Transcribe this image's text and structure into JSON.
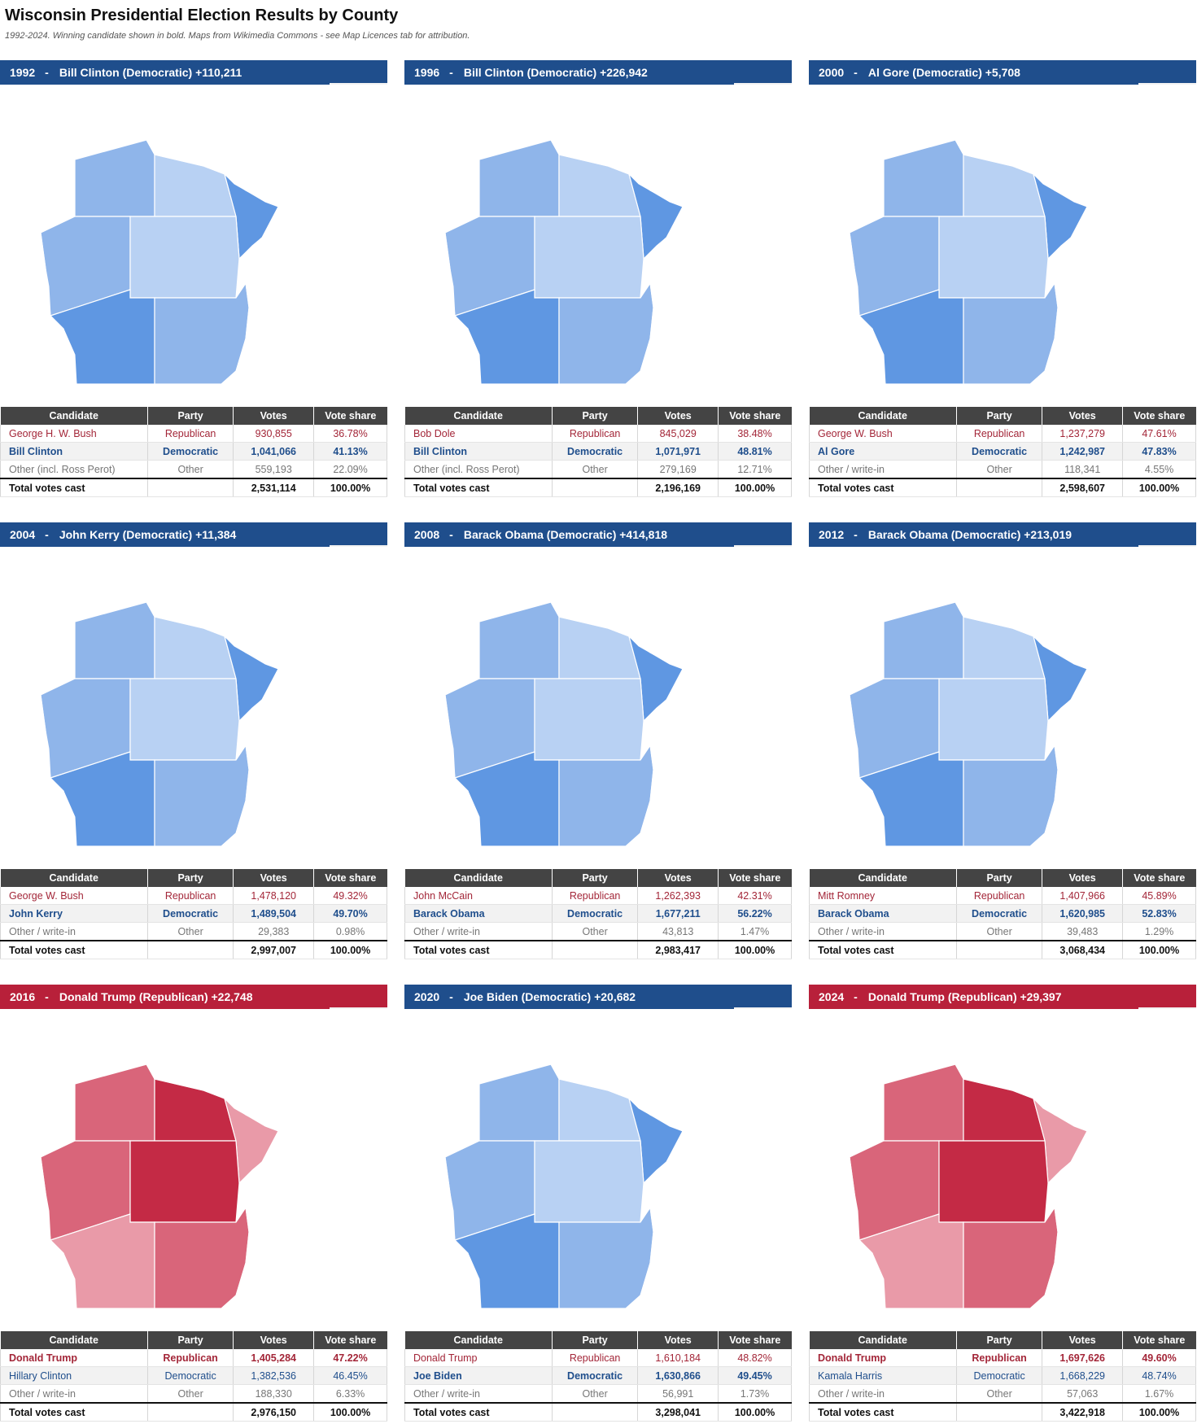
{
  "title": "Wisconsin Presidential Election Results by County",
  "subtitle": "1992-2024. Winning candidate shown in bold. Maps from Wikimedia Commons - see Map Licences tab for attribution.",
  "colors": {
    "dem_header": "#1f4e8c",
    "rep_header": "#b8203a",
    "table_header": "#444444"
  },
  "table_headers": {
    "candidate": "Candidate",
    "party": "Party",
    "votes": "Votes",
    "share": "Vote share"
  },
  "panels": [
    {
      "year": "1992",
      "headline": "Bill Clinton (Democratic) +110,211",
      "winner_party": "dem",
      "rows": [
        {
          "candidate": "George H. W. Bush",
          "party": "Republican",
          "votes": "930,855",
          "share": "36.78%"
        },
        {
          "candidate": "Bill Clinton",
          "party": "Democratic",
          "votes": "1,041,066",
          "share": "41.13%"
        },
        {
          "candidate": "Other (incl. Ross Perot)",
          "party": "Other",
          "votes": "559,193",
          "share": "22.09%"
        },
        {
          "candidate": "Total votes cast",
          "party": "",
          "votes": "2,531,114",
          "share": "100.00%"
        }
      ]
    },
    {
      "year": "1996",
      "headline": "Bill Clinton (Democratic) +226,942",
      "winner_party": "dem",
      "rows": [
        {
          "candidate": "Bob Dole",
          "party": "Republican",
          "votes": "845,029",
          "share": "38.48%"
        },
        {
          "candidate": "Bill Clinton",
          "party": "Democratic",
          "votes": "1,071,971",
          "share": "48.81%"
        },
        {
          "candidate": "Other (incl. Ross Perot)",
          "party": "Other",
          "votes": "279,169",
          "share": "12.71%"
        },
        {
          "candidate": "Total votes cast",
          "party": "",
          "votes": "2,196,169",
          "share": "100.00%"
        }
      ]
    },
    {
      "year": "2000",
      "headline": "Al Gore (Democratic) +5,708",
      "winner_party": "dem",
      "rows": [
        {
          "candidate": "George W. Bush",
          "party": "Republican",
          "votes": "1,237,279",
          "share": "47.61%"
        },
        {
          "candidate": "Al Gore",
          "party": "Democratic",
          "votes": "1,242,987",
          "share": "47.83%"
        },
        {
          "candidate": "Other / write-in",
          "party": "Other",
          "votes": "118,341",
          "share": "4.55%"
        },
        {
          "candidate": "Total votes cast",
          "party": "",
          "votes": "2,598,607",
          "share": "100.00%"
        }
      ]
    },
    {
      "year": "2004",
      "headline": "John Kerry (Democratic) +11,384",
      "winner_party": "dem",
      "rows": [
        {
          "candidate": "George W. Bush",
          "party": "Republican",
          "votes": "1,478,120",
          "share": "49.32%"
        },
        {
          "candidate": "John Kerry",
          "party": "Democratic",
          "votes": "1,489,504",
          "share": "49.70%"
        },
        {
          "candidate": "Other / write-in",
          "party": "Other",
          "votes": "29,383",
          "share": "0.98%"
        },
        {
          "candidate": "Total votes cast",
          "party": "",
          "votes": "2,997,007",
          "share": "100.00%"
        }
      ]
    },
    {
      "year": "2008",
      "headline": "Barack Obama (Democratic) +414,818",
      "winner_party": "dem",
      "rows": [
        {
          "candidate": "John McCain",
          "party": "Republican",
          "votes": "1,262,393",
          "share": "42.31%"
        },
        {
          "candidate": "Barack Obama",
          "party": "Democratic",
          "votes": "1,677,211",
          "share": "56.22%"
        },
        {
          "candidate": "Other / write-in",
          "party": "Other",
          "votes": "43,813",
          "share": "1.47%"
        },
        {
          "candidate": "Total votes cast",
          "party": "",
          "votes": "2,983,417",
          "share": "100.00%"
        }
      ]
    },
    {
      "year": "2012",
      "headline": "Barack Obama (Democratic) +213,019",
      "winner_party": "dem",
      "rows": [
        {
          "candidate": "Mitt Romney",
          "party": "Republican",
          "votes": "1,407,966",
          "share": "45.89%"
        },
        {
          "candidate": "Barack Obama",
          "party": "Democratic",
          "votes": "1,620,985",
          "share": "52.83%"
        },
        {
          "candidate": "Other / write-in",
          "party": "Other",
          "votes": "39,483",
          "share": "1.29%"
        },
        {
          "candidate": "Total votes cast",
          "party": "",
          "votes": "3,068,434",
          "share": "100.00%"
        }
      ]
    },
    {
      "year": "2016",
      "headline": "Donald Trump (Republican) +22,748",
      "winner_party": "rep",
      "rows": [
        {
          "candidate": "Donald Trump",
          "party": "Republican",
          "votes": "1,405,284",
          "share": "47.22%"
        },
        {
          "candidate": "Hillary Clinton",
          "party": "Democratic",
          "votes": "1,382,536",
          "share": "46.45%"
        },
        {
          "candidate": "Other / write-in",
          "party": "Other",
          "votes": "188,330",
          "share": "6.33%"
        },
        {
          "candidate": "Total votes cast",
          "party": "",
          "votes": "2,976,150",
          "share": "100.00%"
        }
      ]
    },
    {
      "year": "2020",
      "headline": "Joe Biden (Democratic) +20,682",
      "winner_party": "dem",
      "rows": [
        {
          "candidate": "Donald Trump",
          "party": "Republican",
          "votes": "1,610,184",
          "share": "48.82%"
        },
        {
          "candidate": "Joe Biden",
          "party": "Democratic",
          "votes": "1,630,866",
          "share": "49.45%"
        },
        {
          "candidate": "Other / write-in",
          "party": "Other",
          "votes": "56,991",
          "share": "1.73%"
        },
        {
          "candidate": "Total votes cast",
          "party": "",
          "votes": "3,298,041",
          "share": "100.00%"
        }
      ]
    },
    {
      "year": "2024",
      "headline": "Donald Trump (Republican) +29,397",
      "winner_party": "rep",
      "rows": [
        {
          "candidate": "Donald Trump",
          "party": "Republican",
          "votes": "1,697,626",
          "share": "49.60%"
        },
        {
          "candidate": "Kamala Harris",
          "party": "Democratic",
          "votes": "1,668,229",
          "share": "48.74%"
        },
        {
          "candidate": "Other / write-in",
          "party": "Other",
          "votes": "57,063",
          "share": "1.67%"
        },
        {
          "candidate": "Total votes cast",
          "party": "",
          "votes": "3,422,918",
          "share": "100.00%"
        }
      ]
    }
  ]
}
